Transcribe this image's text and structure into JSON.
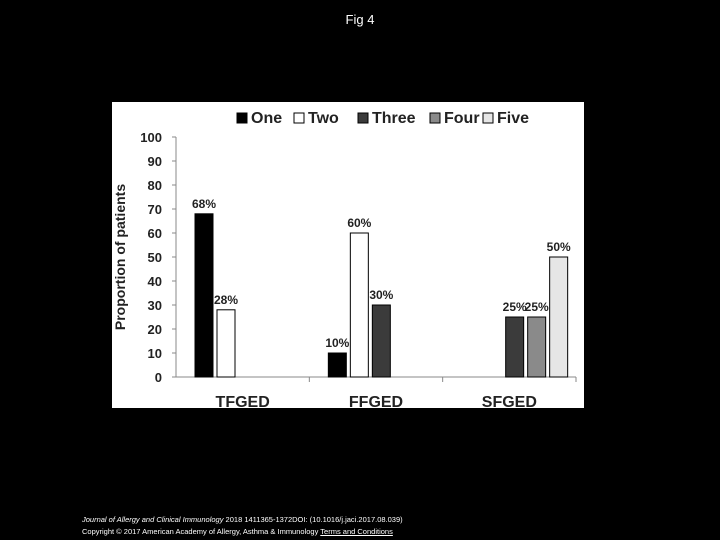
{
  "slide": {
    "title": "Fig 4"
  },
  "footer": {
    "journal": "Journal of Allergy and Clinical Immunology",
    "citation": " 2018 1411365-1372DOI: (10.1016/j.jaci.2017.08.039)",
    "copyright": "Copyright © 2017 American Academy of Allergy, Asthma & Immunology",
    "terms": "Terms and Conditions"
  },
  "chart_data": {
    "type": "bar",
    "title": "",
    "xlabel": "",
    "ylabel": "Proportion of patients",
    "ylim": [
      0,
      100
    ],
    "yticks": [
      0,
      10,
      20,
      30,
      40,
      50,
      60,
      70,
      80,
      90,
      100
    ],
    "grid": false,
    "legend_position": "top",
    "categories": [
      "TFGED",
      "FFGED",
      "SFGED"
    ],
    "series": [
      {
        "name": "One",
        "color": "#000000",
        "values": [
          68,
          10,
          null
        ],
        "labels": [
          "68%",
          "10%",
          ""
        ]
      },
      {
        "name": "Two",
        "color": "#ffffff",
        "values": [
          28,
          60,
          null
        ],
        "labels": [
          "28%",
          "60%",
          ""
        ]
      },
      {
        "name": "Three",
        "color": "#3b3b3b",
        "values": [
          null,
          30,
          25
        ],
        "labels": [
          "",
          "30%",
          "25%"
        ]
      },
      {
        "name": "Four",
        "color": "#8a8a8a",
        "values": [
          null,
          null,
          25
        ],
        "labels": [
          "",
          "",
          "25%"
        ]
      },
      {
        "name": "Five",
        "color": "#e6e6e6",
        "values": [
          null,
          null,
          50
        ],
        "labels": [
          "",
          "",
          "50%"
        ]
      }
    ]
  }
}
